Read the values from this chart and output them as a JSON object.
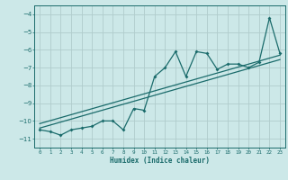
{
  "title": "",
  "xlabel": "Humidex (Indice chaleur)",
  "ylabel": "",
  "xlim": [
    -0.5,
    23.5
  ],
  "ylim": [
    -11.5,
    -3.5
  ],
  "yticks": [
    -11,
    -10,
    -9,
    -8,
    -7,
    -6,
    -5,
    -4
  ],
  "xticks": [
    0,
    1,
    2,
    3,
    4,
    5,
    6,
    7,
    8,
    9,
    10,
    11,
    12,
    13,
    14,
    15,
    16,
    17,
    18,
    19,
    20,
    21,
    22,
    23
  ],
  "bg_color": "#cce8e8",
  "grid_color": "#b0cccc",
  "line_color": "#1a6b6b",
  "data_x": [
    0,
    1,
    2,
    3,
    4,
    5,
    6,
    7,
    8,
    9,
    10,
    11,
    12,
    13,
    14,
    15,
    16,
    17,
    18,
    19,
    20,
    21,
    22,
    23
  ],
  "data_y": [
    -10.5,
    -10.6,
    -10.8,
    -10.5,
    -10.4,
    -10.3,
    -10.0,
    -10.0,
    -10.5,
    -9.3,
    -9.4,
    -7.5,
    -7.0,
    -6.1,
    -7.5,
    -6.1,
    -6.2,
    -7.1,
    -6.8,
    -6.8,
    -7.0,
    -6.7,
    -4.2,
    -6.2
  ],
  "trend1_x": [
    0,
    23
  ],
  "trend1_y": [
    -10.4,
    -6.55
  ],
  "trend2_x": [
    0,
    23
  ],
  "trend2_y": [
    -10.15,
    -6.3
  ]
}
